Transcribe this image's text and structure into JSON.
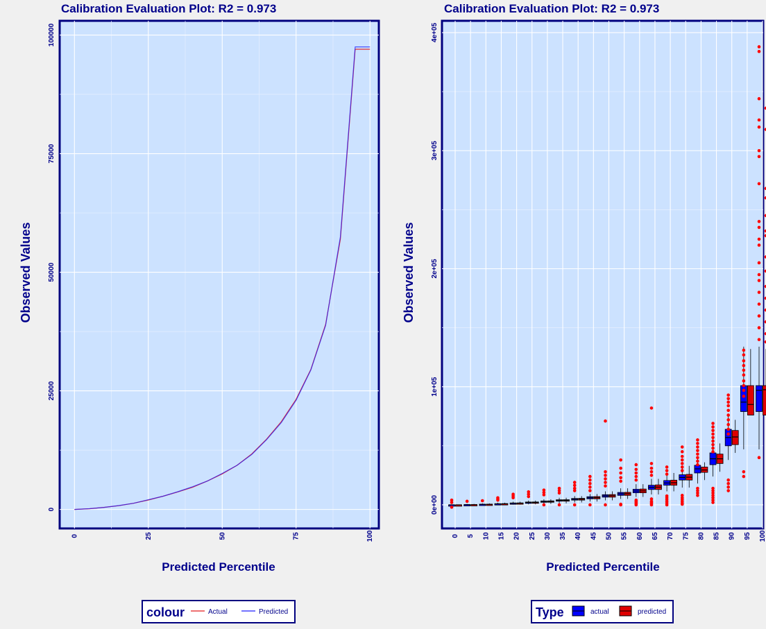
{
  "colors": {
    "page_background": "#f0f0f0",
    "panel_background": "#cce2ff",
    "border": "#00007f",
    "text": "#00008b",
    "actual": "#e31a1c",
    "predicted": "#1f1fff",
    "box_actual": "#0000ff",
    "box_predicted": "#e00000",
    "outlier": "#ff0000"
  },
  "chart_data": [
    {
      "type": "line",
      "title": "Calibration Evaluation Plot: R2 = 0.973",
      "xlabel": "Predicted Percentile",
      "ylabel": "Observed Values",
      "xlim": [
        -5,
        103
      ],
      "ylim": [
        -4000,
        103000
      ],
      "x_ticks": [
        0,
        25,
        50,
        75,
        100
      ],
      "x_tick_labels": [
        "0",
        "25",
        "50",
        "75",
        "100"
      ],
      "y_ticks": [
        0,
        25000,
        50000,
        75000,
        100000
      ],
      "y_tick_labels": [
        "0",
        "25000",
        "50000",
        "75000",
        "100000"
      ],
      "grid": true,
      "legend": {
        "title": "colour",
        "position": "bottom"
      },
      "x": [
        0,
        5,
        10,
        15,
        20,
        25,
        30,
        35,
        40,
        45,
        50,
        55,
        60,
        65,
        70,
        75,
        80,
        85,
        90,
        95,
        100
      ],
      "series": [
        {
          "name": "Actual",
          "color": "#e31a1c",
          "values": [
            0,
            150,
            450,
            800,
            1300,
            2000,
            2800,
            3700,
            4700,
            6000,
            7500,
            9300,
            11700,
            14800,
            18500,
            23200,
            29500,
            39000,
            57000,
            97000,
            97000
          ]
        },
        {
          "name": "Predicted",
          "color": "#1f1fff",
          "values": [
            0,
            160,
            440,
            820,
            1300,
            2050,
            2800,
            3750,
            4800,
            6000,
            7600,
            9300,
            11600,
            14700,
            18300,
            23000,
            29400,
            38800,
            57500,
            97500,
            97500
          ]
        }
      ]
    },
    {
      "type": "box",
      "title": "Calibration Evaluation Plot: R2 = 0.973",
      "xlabel": "Predicted Percentile",
      "ylabel": "Observed Values",
      "categories": [
        "0",
        "5",
        "10",
        "15",
        "20",
        "25",
        "30",
        "35",
        "40",
        "45",
        "50",
        "55",
        "60",
        "65",
        "70",
        "75",
        "80",
        "85",
        "90",
        "95",
        "100"
      ],
      "ylim": [
        -20000,
        410000
      ],
      "y_ticks": [
        0,
        100000,
        200000,
        300000,
        400000
      ],
      "y_tick_labels": [
        "0e+00",
        "1e+05",
        "2e+05",
        "3e+05",
        "4e+05"
      ],
      "grid": true,
      "legend": {
        "title": "Type",
        "position": "bottom"
      },
      "series": [
        {
          "name": "actual",
          "color": "#0000ff",
          "median": [
            0,
            150,
            400,
            800,
            1300,
            2000,
            2800,
            3700,
            4700,
            6000,
            7600,
            9300,
            11700,
            14800,
            18500,
            23200,
            30500,
            39000,
            57000,
            87000,
            97000
          ],
          "q1": [
            0,
            80,
            300,
            600,
            1000,
            1600,
            2300,
            3100,
            4000,
            5100,
            6500,
            8000,
            10200,
            13000,
            16600,
            21000,
            27000,
            34000,
            50000,
            79000,
            79000
          ],
          "q3": [
            0,
            250,
            550,
            1000,
            1600,
            2400,
            3300,
            4300,
            5400,
            6900,
            8600,
            10500,
            13200,
            16600,
            20600,
            25500,
            33500,
            44000,
            64000,
            101000,
            101000
          ],
          "lo": [
            0,
            0,
            0,
            0,
            200,
            400,
            800,
            1300,
            2000,
            2800,
            3800,
            5000,
            6700,
            8800,
            11400,
            14600,
            18000,
            24000,
            38000,
            47000,
            47000
          ],
          "hi": [
            0,
            800,
            1200,
            1800,
            2600,
            3600,
            4700,
            6000,
            7400,
            9200,
            11400,
            14000,
            17500,
            22000,
            27000,
            33000,
            39000,
            56000,
            75000,
            134000,
            134000
          ]
        },
        {
          "name": "predicted",
          "color": "#e00000",
          "median": [
            0,
            150,
            450,
            850,
            1350,
            2050,
            2850,
            3750,
            4800,
            6100,
            7700,
            9400,
            11800,
            15000,
            18700,
            23400,
            29500,
            39000,
            57500,
            85000,
            97500
          ],
          "q1": [
            0,
            80,
            300,
            600,
            1000,
            1600,
            2300,
            3100,
            4000,
            5100,
            6500,
            8000,
            10200,
            13000,
            16600,
            21000,
            27500,
            35000,
            51000,
            76000,
            76000
          ],
          "q3": [
            0,
            250,
            600,
            1050,
            1650,
            2450,
            3350,
            4350,
            5500,
            7000,
            8700,
            10600,
            13400,
            16900,
            20900,
            25800,
            32000,
            43000,
            63000,
            101000,
            101000
          ],
          "lo": [
            0,
            0,
            0,
            0,
            200,
            400,
            800,
            1300,
            2000,
            2800,
            3800,
            5000,
            6700,
            8800,
            11400,
            14600,
            21000,
            28000,
            44000,
            76000,
            76000
          ],
          "hi": [
            0,
            800,
            1200,
            1800,
            2600,
            3600,
            4700,
            6000,
            7400,
            9200,
            11400,
            14000,
            17500,
            22000,
            27000,
            33000,
            36000,
            52000,
            72000,
            132000,
            132000
          ]
        }
      ],
      "outliers": {
        "actual": [
          [
            4000,
            2000,
            -2000
          ],
          [
            3000
          ],
          [
            3500
          ],
          [
            6000,
            5000,
            4000
          ],
          [
            9000,
            7500,
            6000
          ],
          [
            11000,
            9000,
            7000
          ],
          [
            12500,
            10500,
            8500,
            0
          ],
          [
            14000,
            12000,
            10000,
            0
          ],
          [
            19000,
            16500,
            14000,
            12000,
            0
          ],
          [
            24000,
            21000,
            18000,
            15000,
            12000,
            0
          ],
          [
            71000,
            28000,
            25000,
            22000,
            19000,
            16000,
            0
          ],
          [
            38000,
            31000,
            27000,
            23000,
            20000,
            0,
            500
          ],
          [
            34000,
            30000,
            27000,
            24000,
            21000,
            0,
            1000,
            2000,
            3000,
            4000
          ],
          [
            82000,
            35000,
            31000,
            28000,
            25000,
            0,
            1000,
            2000,
            3000,
            5000
          ],
          [
            32000,
            29000,
            26000,
            0,
            1500,
            3000,
            4500,
            6000,
            7500
          ],
          [
            49000,
            45000,
            41000,
            38000,
            35000,
            32000,
            29000,
            500,
            1500,
            3000,
            4500,
            6000,
            8000
          ],
          [
            55000,
            52000,
            49000,
            46000,
            43000,
            40000,
            37000,
            34000,
            8000,
            10000,
            12000,
            14000
          ],
          [
            69000,
            66000,
            63000,
            60000,
            57000,
            54000,
            51000,
            48000,
            45000,
            2000,
            4000,
            6000,
            8000,
            10000,
            12000,
            14000
          ],
          [
            93000,
            90000,
            87000,
            84000,
            80000,
            76000,
            72000,
            68000,
            64000,
            60000,
            12000,
            15000,
            18000,
            21000
          ],
          [
            131000,
            127000,
            122000,
            118000,
            114000,
            110000,
            105000,
            101000,
            97000,
            92000,
            24000,
            28000
          ],
          [
            388000,
            384000,
            344000,
            326000,
            320000,
            300000,
            295000,
            272000,
            240000,
            235000,
            225000,
            220000,
            205000,
            195000,
            190000,
            180000,
            170000,
            160000,
            150000,
            140000,
            40000
          ]
        ],
        "predicted": [
          [],
          [],
          [],
          [],
          [],
          [],
          [],
          [],
          [],
          [],
          [],
          [],
          [],
          [],
          [],
          [],
          [],
          [],
          [],
          [],
          [
            336000,
            318000,
            268000,
            260000,
            245000,
            232000,
            228000,
            210000,
            198000,
            185000,
            175000,
            165000,
            155000,
            145000,
            138000
          ]
        ]
      }
    }
  ]
}
